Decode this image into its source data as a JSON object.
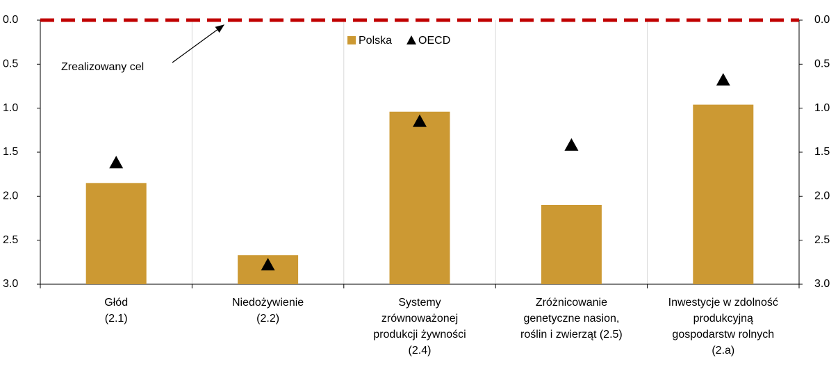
{
  "chart_data": {
    "type": "bar",
    "categories": [
      "Głód\n(2.1)",
      "Niedożywienie\n(2.2)",
      "Systemy\nzrównoważonej\nprodukcji żywności\n(2.4)",
      "Zróżnicowanie\ngenetyczne nasion,\nroślin i zwierząt (2.5)",
      "Inwestycje w zdolność\nprodukcyjną\ngospodarstw rolnych\n(2.a)"
    ],
    "series": [
      {
        "name": "Polska",
        "color": "#cc9933",
        "marker": "bar",
        "values": [
          1.85,
          2.67,
          1.04,
          2.1,
          0.96
        ]
      },
      {
        "name": "OECD",
        "color": "#000000",
        "marker": "triangle",
        "values": [
          1.62,
          2.78,
          1.15,
          1.42,
          0.68
        ]
      }
    ],
    "target": {
      "value": 0,
      "label": "Zrealizowany cel",
      "color": "#c00000"
    },
    "ylim": [
      0,
      3
    ],
    "inverted": true,
    "yticks": [
      {
        "value": 0,
        "label": "0.0"
      },
      0.5,
      {
        "value": 1,
        "label": "1.0"
      },
      1.5,
      {
        "value": 2,
        "label": "2.0"
      },
      2.5,
      {
        "value": 3,
        "label": "3.0"
      }
    ],
    "y2lim": [
      0,
      3
    ],
    "y2ticks": [
      {
        "value": 0,
        "label": "0.0"
      },
      0.5,
      {
        "value": 1,
        "label": "1.0"
      },
      1.5,
      {
        "value": 2,
        "label": "2.0"
      },
      2.5,
      {
        "value": 3,
        "label": "3.0"
      }
    ],
    "grid": true,
    "legend": "top"
  }
}
